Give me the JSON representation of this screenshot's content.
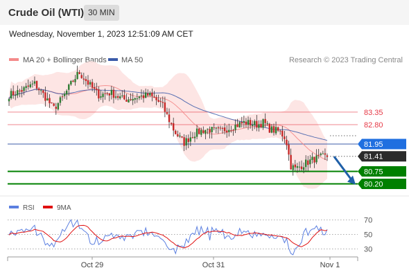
{
  "header": {
    "instrument": "Crude Oil (WTI)",
    "timeframe": "30 MIN",
    "datetime": "Wednesday, November 1, 2023 12:51:09 AM CET",
    "copyright": "Research © 2023 Trading Central"
  },
  "legend": {
    "bollinger": "MA 20 + Bollinger Bands",
    "ma50": "MA 50",
    "rsi": "RSI",
    "rsi_ma": "9MA"
  },
  "colors": {
    "up_candle": "#2e7d32",
    "down_candle": "#c62828",
    "bollinger": "#f48a8a",
    "bollinger_band": "#fde0df",
    "ma50": "#3b5ba9",
    "support": "#008000",
    "rsi": "#5b7fe0",
    "rsi_ma": "#e01010",
    "resistance": "#e63946",
    "current_price": "#2b2b2b",
    "arrow": "#2060a8"
  },
  "chart_data": [
    {
      "type": "candlestick",
      "x_ticks": [
        "Oct 29",
        "Oct 31",
        "Nov 1"
      ],
      "y_range": [
        79.7,
        85.9
      ],
      "levels": [
        {
          "label": "83.35",
          "value": 83.35,
          "kind": "resistance",
          "style": "thin"
        },
        {
          "label": "82.80",
          "value": 82.8,
          "kind": "resistance",
          "style": "thin"
        },
        {
          "label": "81.95",
          "value": 81.95,
          "kind": "ma50",
          "style": "thin"
        },
        {
          "label": "81.41",
          "value": 81.41,
          "kind": "current",
          "style": "dotted"
        },
        {
          "label": "80.75",
          "value": 80.75,
          "kind": "support",
          "style": "thick"
        },
        {
          "label": "80.20",
          "value": 80.2,
          "kind": "support",
          "style": "thick"
        }
      ],
      "forecast_arrow": {
        "from": 81.4,
        "to": 80.2
      }
    },
    {
      "type": "line",
      "y_ticks": [
        70,
        50,
        30
      ],
      "y_range": [
        20,
        82
      ],
      "series": [
        {
          "name": "RSI"
        },
        {
          "name": "9MA"
        }
      ]
    }
  ]
}
